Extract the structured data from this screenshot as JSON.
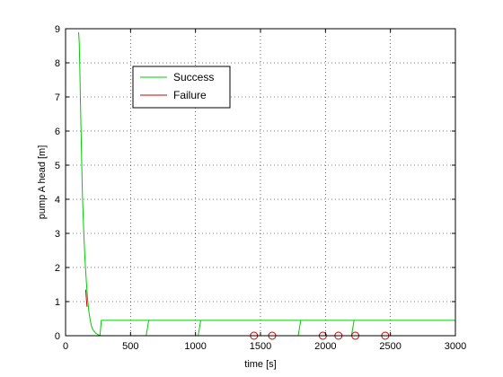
{
  "chart_data": {
    "type": "line",
    "title": "",
    "xlabel": "time [s]",
    "ylabel": "pump A head [m]",
    "xlim": [
      0,
      3000
    ],
    "ylim": [
      0,
      9
    ],
    "xticks": [
      0,
      500,
      1000,
      1500,
      2000,
      2500,
      3000
    ],
    "yticks": [
      0,
      1,
      2,
      3,
      4,
      5,
      6,
      7,
      8,
      9
    ],
    "xtick_labels": [
      "0",
      "500",
      "1000",
      "1500",
      "2000",
      "2500",
      "3000"
    ],
    "ytick_labels": [
      "0",
      "1",
      "2",
      "3",
      "4",
      "5",
      "6",
      "7",
      "8",
      "9"
    ],
    "grid": true,
    "legend": {
      "placement": "top-left-inside",
      "entries": [
        "Success",
        "Failure"
      ]
    },
    "colors": {
      "success": "#00cc00",
      "failure": "#cc0000"
    },
    "series": [
      {
        "name": "Success",
        "color": "#00cc00",
        "segments": [
          {
            "x": [
              100,
              105,
              110,
              115,
              120,
              125,
              130,
              140,
              150,
              160,
              170,
              180,
              190,
              200,
              215,
              230,
              250,
              265,
              270
            ],
            "y": [
              8.9,
              8.6,
              7.8,
              6.8,
              5.8,
              4.9,
              4.1,
              3.0,
              2.2,
              1.6,
              1.05,
              0.7,
              0.45,
              0.27,
              0.15,
              0.08,
              0.03,
              0.01,
              0.0
            ]
          },
          {
            "x": [
              265,
              275,
              3000
            ],
            "y": [
              0.0,
              0.45,
              0.45
            ]
          },
          {
            "x": [
              270,
              620
            ],
            "y": [
              0.0,
              0.0
            ]
          },
          {
            "x": [
              620,
              640
            ],
            "y": [
              0.0,
              0.45
            ]
          },
          {
            "x": [
              640,
              1020
            ],
            "y": [
              0.0,
              0.0
            ]
          },
          {
            "x": [
              1020,
              1040
            ],
            "y": [
              0.0,
              0.45
            ]
          },
          {
            "x": [
              1790,
              1810
            ],
            "y": [
              0.0,
              0.45
            ]
          },
          {
            "x": [
              2200,
              2220
            ],
            "y": [
              0.0,
              0.45
            ]
          }
        ]
      },
      {
        "name": "Failure",
        "color": "#cc0000",
        "segments": [
          {
            "x": [
              155,
              160,
              165
            ],
            "y": [
              1.35,
              1.1,
              0.85
            ]
          },
          {
            "x": [
              1040,
              2460
            ],
            "y": [
              0.0,
              0.0
            ]
          }
        ],
        "markers": {
          "shape": "circle",
          "x": [
            1450,
            1590,
            1980,
            2100,
            2230,
            2460
          ],
          "y": [
            0,
            0,
            0,
            0,
            0,
            0
          ]
        }
      }
    ]
  }
}
